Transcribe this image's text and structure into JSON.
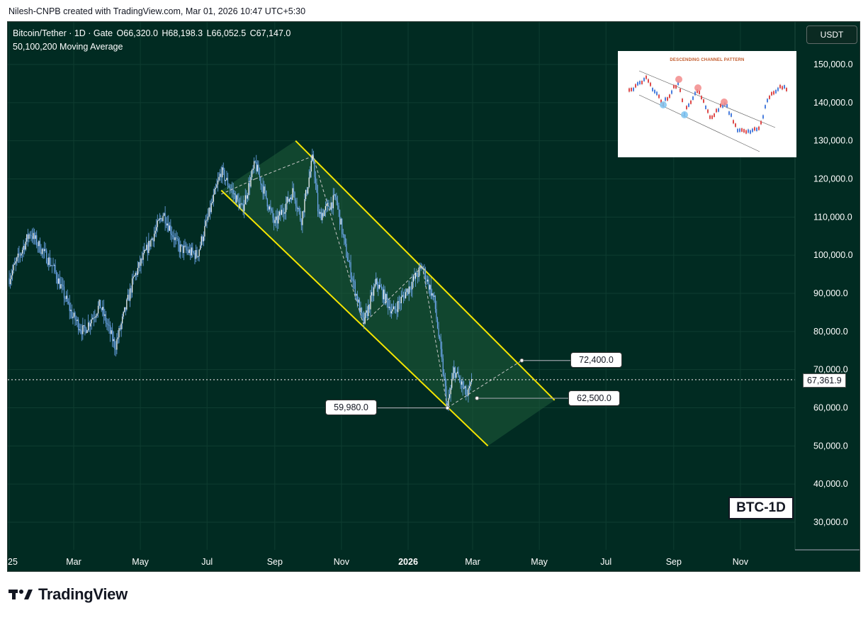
{
  "header": {
    "attribution": "Nilesh-CNPB created with TradingView.com, Mar 01, 2026 10:47 UTC+5:30"
  },
  "legend": {
    "symbol": "Bitcoin/Tether · 1D · Gate",
    "open": "O66,320.0",
    "high": "H68,198.3",
    "low": "L66,052.5",
    "close": "C67,147.0",
    "indicator": "50,100,200 Moving Average"
  },
  "currency_button": "USDT",
  "current_price": "67,361.9",
  "annotations": {
    "label_72400": "72,400.0",
    "label_62500": "62,500.0",
    "label_59980": "59,980.0"
  },
  "tag": "BTC-1D",
  "inset": {
    "title": "DESCENDING CHANNEL PATTERN"
  },
  "footer": {
    "brand": "TradingView"
  },
  "colors": {
    "background": "#012b22",
    "candle": "#6fa8f0",
    "channel_line": "#f5e600",
    "channel_fill": "#1f5c3b",
    "grid": "#0f3d31"
  },
  "chart_data": {
    "type": "line",
    "title": "Bitcoin/Tether · 1D · Gate",
    "xlabel": "",
    "ylabel": "",
    "x_ticks": [
      "25",
      "Mar",
      "May",
      "Jul",
      "Sep",
      "Nov",
      "2026",
      "Mar",
      "May",
      "Jul",
      "Sep",
      "Nov"
    ],
    "y_ticks": [
      30000,
      40000,
      50000,
      60000,
      70000,
      80000,
      90000,
      100000,
      110000,
      120000,
      130000,
      140000,
      150000
    ],
    "ylim": [
      22000,
      157000
    ],
    "grid": true,
    "price_path": [
      {
        "x": "2025-01-01",
        "y": 94000
      },
      {
        "x": "2025-01-20",
        "y": 106000
      },
      {
        "x": "2025-02-10",
        "y": 97000
      },
      {
        "x": "2025-02-28",
        "y": 84000
      },
      {
        "x": "2025-03-10",
        "y": 80000
      },
      {
        "x": "2025-03-25",
        "y": 87000
      },
      {
        "x": "2025-04-08",
        "y": 76000
      },
      {
        "x": "2025-04-25",
        "y": 94000
      },
      {
        "x": "2025-05-22",
        "y": 111000
      },
      {
        "x": "2025-06-05",
        "y": 102000
      },
      {
        "x": "2025-06-22",
        "y": 100000
      },
      {
        "x": "2025-07-14",
        "y": 122000
      },
      {
        "x": "2025-08-02",
        "y": 112000
      },
      {
        "x": "2025-08-14",
        "y": 124000
      },
      {
        "x": "2025-09-01",
        "y": 108000
      },
      {
        "x": "2025-09-18",
        "y": 117000
      },
      {
        "x": "2025-09-25",
        "y": 109000
      },
      {
        "x": "2025-10-06",
        "y": 126000
      },
      {
        "x": "2025-10-11",
        "y": 110000
      },
      {
        "x": "2025-10-27",
        "y": 115000
      },
      {
        "x": "2025-11-05",
        "y": 101000
      },
      {
        "x": "2025-11-21",
        "y": 82000
      },
      {
        "x": "2025-12-03",
        "y": 93000
      },
      {
        "x": "2025-12-18",
        "y": 85000
      },
      {
        "x": "2026-01-14",
        "y": 97000
      },
      {
        "x": "2026-01-25",
        "y": 88000
      },
      {
        "x": "2026-02-06",
        "y": 60000
      },
      {
        "x": "2026-02-12",
        "y": 70000
      },
      {
        "x": "2026-02-24",
        "y": 63000
      },
      {
        "x": "2026-03-01",
        "y": 67147
      }
    ],
    "channel": {
      "upper": [
        {
          "x": "2025-09-20",
          "y": 130000
        },
        {
          "x": "2026-05-15",
          "y": 62000
        }
      ],
      "lower": [
        {
          "x": "2025-07-14",
          "y": 117000
        },
        {
          "x": "2026-03-15",
          "y": 50000
        }
      ]
    },
    "levels": [
      {
        "label": "72,400.0",
        "value": 72400
      },
      {
        "label": "62,500.0",
        "value": 62500
      },
      {
        "label": "59,980.0",
        "value": 59980
      },
      {
        "label": "67,361.9",
        "value": 67361.9
      }
    ]
  }
}
